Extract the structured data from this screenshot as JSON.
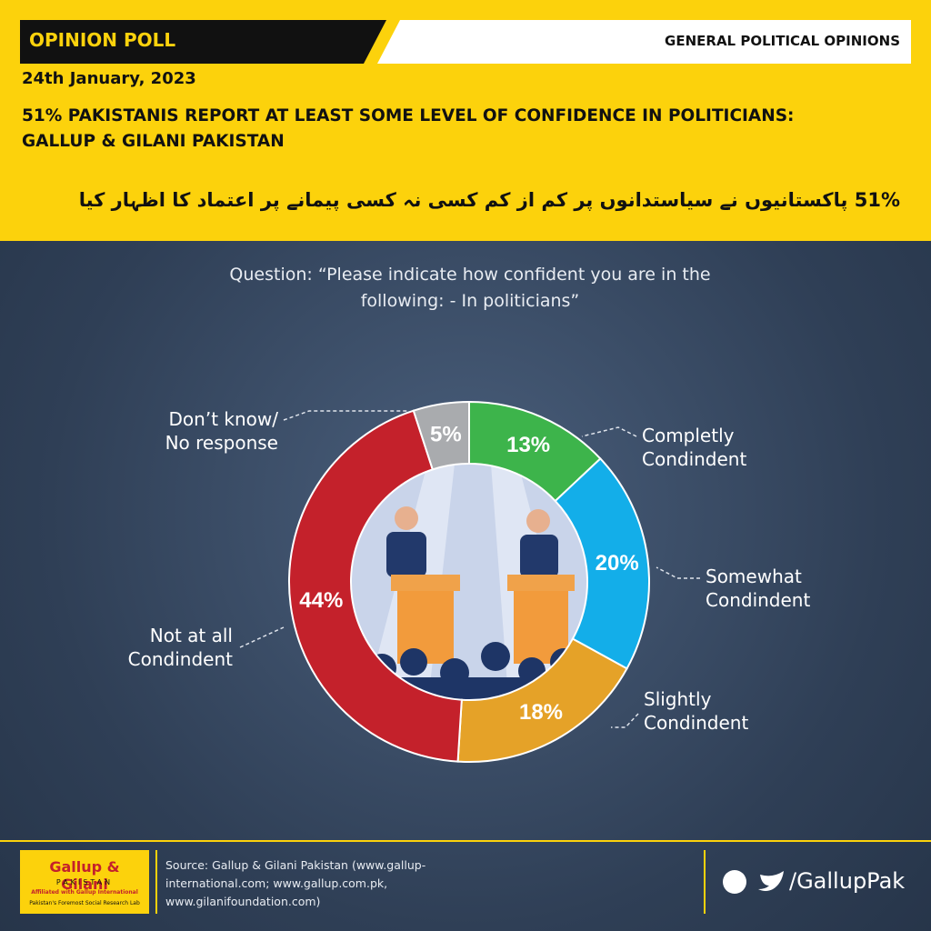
{
  "header": {
    "tag": "OPINION POLL",
    "section": "GENERAL POLITICAL OPINIONS",
    "date": "24th January, 2023",
    "headline": [
      "51% PAKISTANIS REPORT AT LEAST SOME LEVEL OF CONFIDENCE IN POLITICIANS:",
      "GALLUP & GILANI PAKISTAN"
    ],
    "urdu": "51% پاکستانیوں نے سیاستدانوں پر کم از کم کسی نہ کسی پیمانے پر اعتماد کا اظہار کیا"
  },
  "chart_data": {
    "type": "donut",
    "title": "Question: “Please indicate how confident you are in the following: - In politicians”",
    "categories": [
      "Completly Condindent",
      "Somewhat Condindent",
      "Slightly Condindent",
      "Not at all Condindent",
      "Don’t know/ No response"
    ],
    "values": [
      13,
      20,
      18,
      44,
      5
    ],
    "value_labels": [
      "13%",
      "20%",
      "18%",
      "44%",
      "5%"
    ],
    "colors": [
      "#3db44b",
      "#13aee9",
      "#e5a228",
      "#c4212b",
      "#a9abae"
    ]
  },
  "footer": {
    "logo": "Gallup & Gilani",
    "logo_sub": "PAKISTAN",
    "logo_tag": "Affiliated with Gallup International",
    "logo_line": "Pakistan's Foremost Social Research Lab",
    "source": "Source: Gallup & Gilani Pakistan (www.gallup-international.com; www.gallup.com.pk, www.gilanifoundation.com)",
    "handle": "/GallupPak"
  }
}
